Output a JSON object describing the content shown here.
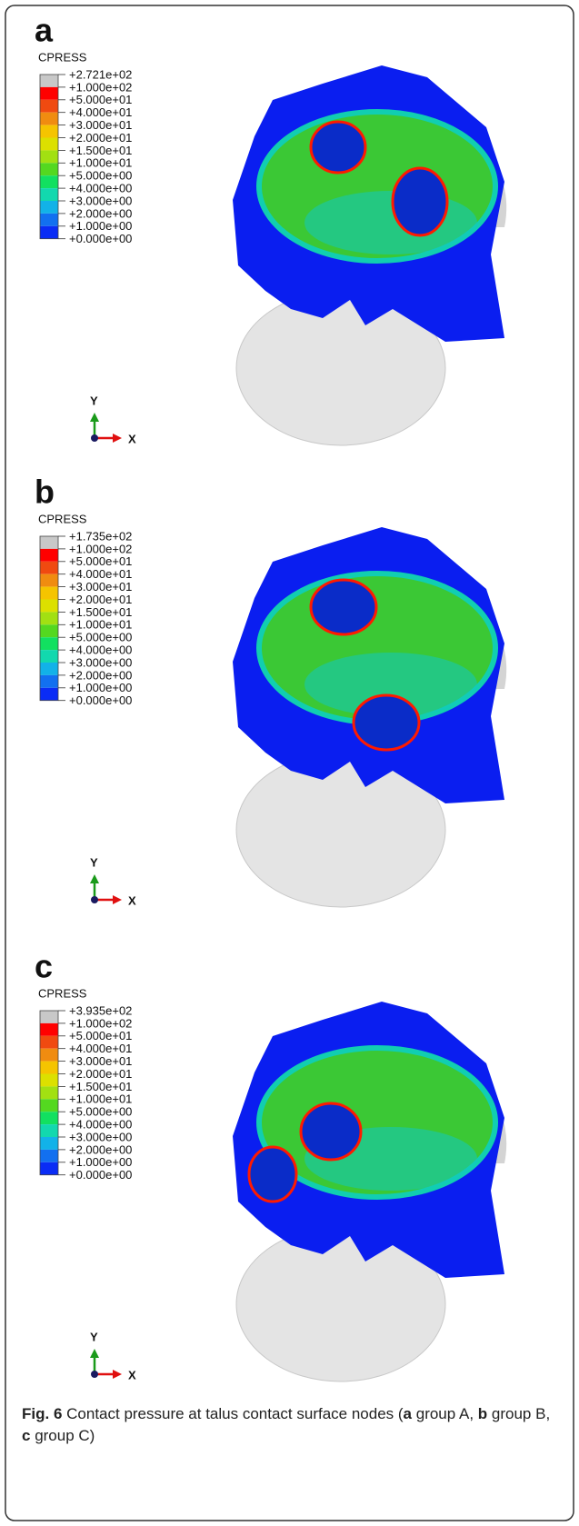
{
  "panels": [
    {
      "label": "a",
      "legend_title": "CPRESS",
      "legend_labels": [
        "+2.721e+02",
        "+1.000e+02",
        "+5.000e+01",
        "+4.000e+01",
        "+3.000e+01",
        "+2.000e+01",
        "+1.500e+01",
        "+1.000e+01",
        "+5.000e+00",
        "+4.000e+00",
        "+3.000e+00",
        "+2.000e+00",
        "+1.000e+00",
        "+0.000e+00"
      ],
      "legend_colors": [
        "#c8c8c8",
        "#ff0000",
        "#f04a10",
        "#f08c10",
        "#f5c400",
        "#dce000",
        "#a2e012",
        "#54d820",
        "#12e060",
        "#12d8ae",
        "#12b2e8",
        "#1270f0",
        "#0a2cf5"
      ],
      "axis_y": "Y",
      "axis_x": "X"
    },
    {
      "label": "b",
      "legend_title": "CPRESS",
      "legend_labels": [
        "+1.735e+02",
        "+1.000e+02",
        "+5.000e+01",
        "+4.000e+01",
        "+3.000e+01",
        "+2.000e+01",
        "+1.500e+01",
        "+1.000e+01",
        "+5.000e+00",
        "+4.000e+00",
        "+3.000e+00",
        "+2.000e+00",
        "+1.000e+00",
        "+0.000e+00"
      ],
      "legend_colors": [
        "#c8c8c8",
        "#ff0000",
        "#f04a10",
        "#f08c10",
        "#f5c400",
        "#dce000",
        "#a2e012",
        "#54d820",
        "#12e060",
        "#12d8ae",
        "#12b2e8",
        "#1270f0",
        "#0a2cf5"
      ],
      "axis_y": "Y",
      "axis_x": "X"
    },
    {
      "label": "c",
      "legend_title": "CPRESS",
      "legend_labels": [
        "+3.935e+02",
        "+1.000e+02",
        "+5.000e+01",
        "+4.000e+01",
        "+3.000e+01",
        "+2.000e+01",
        "+1.500e+01",
        "+1.000e+01",
        "+5.000e+00",
        "+4.000e+00",
        "+3.000e+00",
        "+2.000e+00",
        "+1.000e+00",
        "+0.000e+00"
      ],
      "legend_colors": [
        "#c8c8c8",
        "#ff0000",
        "#f04a10",
        "#f08c10",
        "#f5c400",
        "#dce000",
        "#a2e012",
        "#54d820",
        "#12e060",
        "#12d8ae",
        "#12b2e8",
        "#1270f0",
        "#0a2cf5"
      ],
      "axis_y": "Y",
      "axis_x": "X"
    }
  ],
  "caption": {
    "segments": [
      {
        "text": "Fig. 6",
        "bold": true
      },
      {
        "text": " Contact pressure at talus contact surface nodes (",
        "bold": false
      },
      {
        "text": "a",
        "bold": true
      },
      {
        "text": " group A, ",
        "bold": false
      },
      {
        "text": "b",
        "bold": true
      },
      {
        "text": " group B, ",
        "bold": false
      },
      {
        "text": "c",
        "bold": true
      },
      {
        "text": " group C)",
        "bold": false
      }
    ]
  }
}
